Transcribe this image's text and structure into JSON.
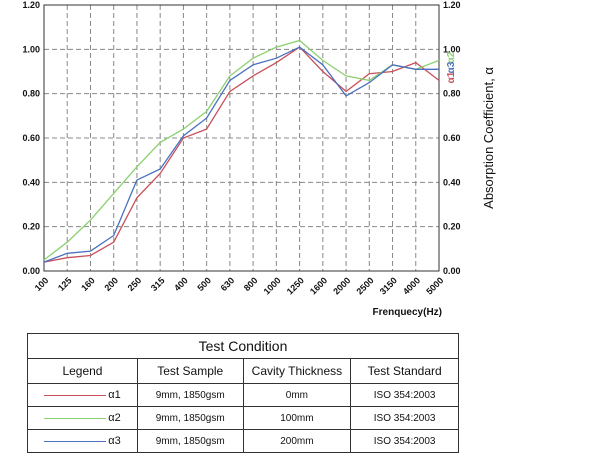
{
  "chart_data": {
    "type": "line",
    "title": "",
    "xlabel": "Frenquecy(Hz)",
    "ylabel": "Absorption Coefficient, α",
    "categories": [
      "100",
      "125",
      "160",
      "200",
      "250",
      "315",
      "400",
      "500",
      "630",
      "800",
      "1000",
      "1250",
      "1600",
      "2000",
      "2500",
      "3150",
      "4000",
      "5000"
    ],
    "ylim": [
      0,
      1.2
    ],
    "yticks": [
      "0.00",
      "0.20",
      "0.40",
      "0.60",
      "0.80",
      "1.00",
      "1.20"
    ],
    "grid": true,
    "series": [
      {
        "name": "α1",
        "color": "#c8505a",
        "values": [
          0.04,
          0.06,
          0.07,
          0.13,
          0.33,
          0.44,
          0.6,
          0.64,
          0.81,
          0.88,
          0.94,
          1.01,
          0.9,
          0.81,
          0.89,
          0.9,
          0.94,
          0.86
        ]
      },
      {
        "name": "α2",
        "color": "#8cd070",
        "values": [
          0.05,
          0.13,
          0.23,
          0.35,
          0.47,
          0.58,
          0.64,
          0.72,
          0.88,
          0.96,
          1.01,
          1.04,
          0.95,
          0.88,
          0.86,
          0.93,
          0.91,
          0.95
        ]
      },
      {
        "name": "α3",
        "color": "#4a70c0",
        "values": [
          0.04,
          0.08,
          0.09,
          0.16,
          0.41,
          0.46,
          0.61,
          0.69,
          0.86,
          0.93,
          0.96,
          1.01,
          0.93,
          0.79,
          0.85,
          0.93,
          0.91,
          0.91
        ]
      }
    ]
  },
  "table": {
    "caption": "Test Condition",
    "headers": [
      "Legend",
      "Test Sample",
      "Cavity Thickness",
      "Test Standard"
    ],
    "rows": [
      {
        "symbol": "α1",
        "color": "#c8505a",
        "sample": "9mm, 1850gsm",
        "cavity": "0mm",
        "standard": "ISO  354:2003"
      },
      {
        "symbol": "α2",
        "color": "#8cd070",
        "sample": "9mm, 1850gsm",
        "cavity": "100mm",
        "standard": "ISO  354:2003"
      },
      {
        "symbol": "α3",
        "color": "#4a70c0",
        "sample": "9mm, 1850gsm",
        "cavity": "200mm",
        "standard": "ISO  354:2003"
      }
    ]
  }
}
